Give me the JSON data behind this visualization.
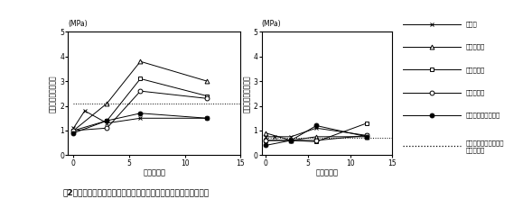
{
  "left_chart": {
    "xlabel": "埋設後月数",
    "ylabel_unit": "(MPa)",
    "ylabel": "乾燥土塊の硬化強度",
    "ylim": [
      0,
      5
    ],
    "yticks": [
      0,
      1,
      2,
      3,
      4,
      5
    ],
    "xlim": [
      -0.5,
      15
    ],
    "xticks": [
      0,
      5,
      10,
      15
    ],
    "series": {
      "bagas": {
        "x": [
          0,
          1,
          3,
          6,
          12
        ],
        "y": [
          1.1,
          1.8,
          1.3,
          1.5,
          1.5
        ],
        "marker": "x",
        "color": "black",
        "linestyle": "-",
        "fillstyle": "full"
      },
      "chicken": {
        "x": [
          0,
          3,
          6,
          12
        ],
        "y": [
          1.0,
          2.1,
          3.8,
          3.0
        ],
        "marker": "^",
        "color": "black",
        "linestyle": "-",
        "fillstyle": "none"
      },
      "pig": {
        "x": [
          0,
          3,
          6,
          12
        ],
        "y": [
          1.0,
          1.4,
          3.1,
          2.4
        ],
        "marker": "s",
        "color": "black",
        "linestyle": "-",
        "fillstyle": "none"
      },
      "cattle": {
        "x": [
          0,
          3,
          6,
          12
        ],
        "y": [
          1.0,
          1.1,
          2.6,
          2.3
        ],
        "marker": "o",
        "color": "black",
        "linestyle": "-",
        "fillstyle": "none"
      },
      "cattle_pellet": {
        "x": [
          0,
          3,
          6,
          12
        ],
        "y": [
          0.9,
          1.4,
          1.7,
          1.5
        ],
        "marker": "o",
        "color": "black",
        "linestyle": "-",
        "fillstyle": "full"
      },
      "control": {
        "x": [
          0,
          15
        ],
        "y": [
          2.1,
          2.1
        ],
        "marker": "none",
        "color": "black",
        "linestyle": ":"
      }
    }
  },
  "right_chart": {
    "xlabel": "埋設後月数",
    "ylabel_unit": "(MPa)",
    "ylabel": "乾燥土塊の硬化強度",
    "ylim": [
      0,
      5
    ],
    "yticks": [
      0,
      1,
      2,
      3,
      4,
      5
    ],
    "xlim": [
      -0.5,
      15
    ],
    "xticks": [
      0,
      5,
      10,
      15
    ],
    "series": {
      "bagas": {
        "x": [
          0,
          1,
          3,
          6,
          12
        ],
        "y": [
          0.75,
          0.75,
          0.75,
          1.1,
          0.8
        ],
        "marker": "x",
        "color": "black",
        "linestyle": "-",
        "fillstyle": "full"
      },
      "chicken": {
        "x": [
          0,
          3,
          6,
          12
        ],
        "y": [
          0.9,
          0.6,
          0.75,
          0.75
        ],
        "marker": "^",
        "color": "black",
        "linestyle": "-",
        "fillstyle": "none"
      },
      "pig": {
        "x": [
          0,
          3,
          6,
          12
        ],
        "y": [
          0.6,
          0.6,
          0.55,
          1.3
        ],
        "marker": "s",
        "color": "black",
        "linestyle": "-",
        "fillstyle": "none"
      },
      "cattle": {
        "x": [
          0,
          3,
          6,
          12
        ],
        "y": [
          0.6,
          0.6,
          0.6,
          0.8
        ],
        "marker": "o",
        "color": "black",
        "linestyle": "-",
        "fillstyle": "none"
      },
      "cattle_pellet": {
        "x": [
          0,
          3,
          6,
          12
        ],
        "y": [
          0.4,
          0.6,
          1.2,
          0.75
        ],
        "marker": "o",
        "color": "black",
        "linestyle": "-",
        "fillstyle": "full"
      },
      "control": {
        "x": [
          0,
          15
        ],
        "y": [
          0.7,
          0.7
        ],
        "marker": "none",
        "color": "black",
        "linestyle": ":"
      }
    }
  },
  "legend_items": [
    {
      "label": "バガス",
      "marker": "x",
      "fillstyle": "full",
      "linestyle": "-"
    },
    {
      "label": "鶏ふん堆肥",
      "marker": "^",
      "fillstyle": "none",
      "linestyle": "-"
    },
    {
      "label": "豚ふん堆肥",
      "marker": "s",
      "fillstyle": "none",
      "linestyle": "-"
    },
    {
      "label": "牛ふん堆肥",
      "marker": "o",
      "fillstyle": "none",
      "linestyle": "-"
    },
    {
      "label": "牛ふんペレット堆肥",
      "marker": "o",
      "fillstyle": "full",
      "linestyle": "-"
    },
    {
      "label": "対照（無施用の土壌）\nの硬化強度",
      "marker": "none",
      "linestyle": ":"
    }
  ],
  "figure_caption": "囲2　有機物資材の種類とその分解が土壌の硬化強度に及ぼす影響"
}
